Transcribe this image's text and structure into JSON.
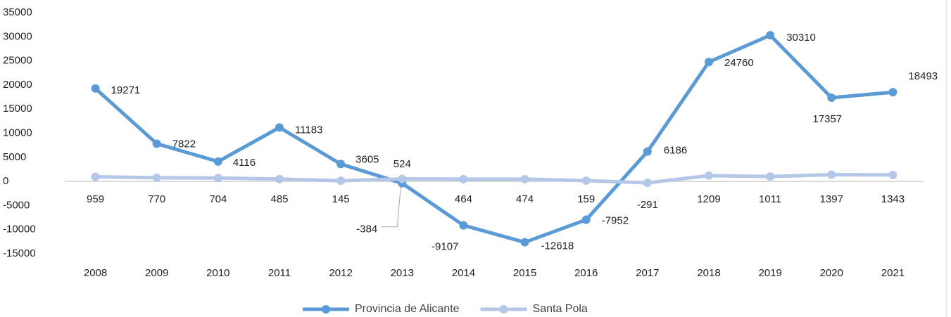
{
  "chart_data": {
    "type": "line",
    "categories": [
      "2008",
      "2009",
      "2010",
      "2011",
      "2012",
      "2013",
      "2014",
      "2015",
      "2016",
      "2017",
      "2018",
      "2019",
      "2020",
      "2021"
    ],
    "series": [
      {
        "name": "Provincia de Alicante",
        "color": "#5b9bd5",
        "values": [
          19271,
          7822,
          4116,
          11183,
          3605,
          -384,
          -9107,
          -12618,
          -7952,
          6186,
          24760,
          30310,
          17357,
          18493
        ]
      },
      {
        "name": "Santa Pola",
        "color": "#b4c7e7",
        "values": [
          959,
          770,
          704,
          485,
          145,
          524,
          464,
          474,
          159,
          -291,
          1209,
          1011,
          1397,
          1343
        ]
      }
    ],
    "ylim": [
      -15000,
      35000
    ],
    "yticks": [
      -15000,
      -10000,
      -5000,
      0,
      5000,
      10000,
      15000,
      20000,
      25000,
      30000,
      35000
    ],
    "legend": "bottom",
    "grid": false
  }
}
